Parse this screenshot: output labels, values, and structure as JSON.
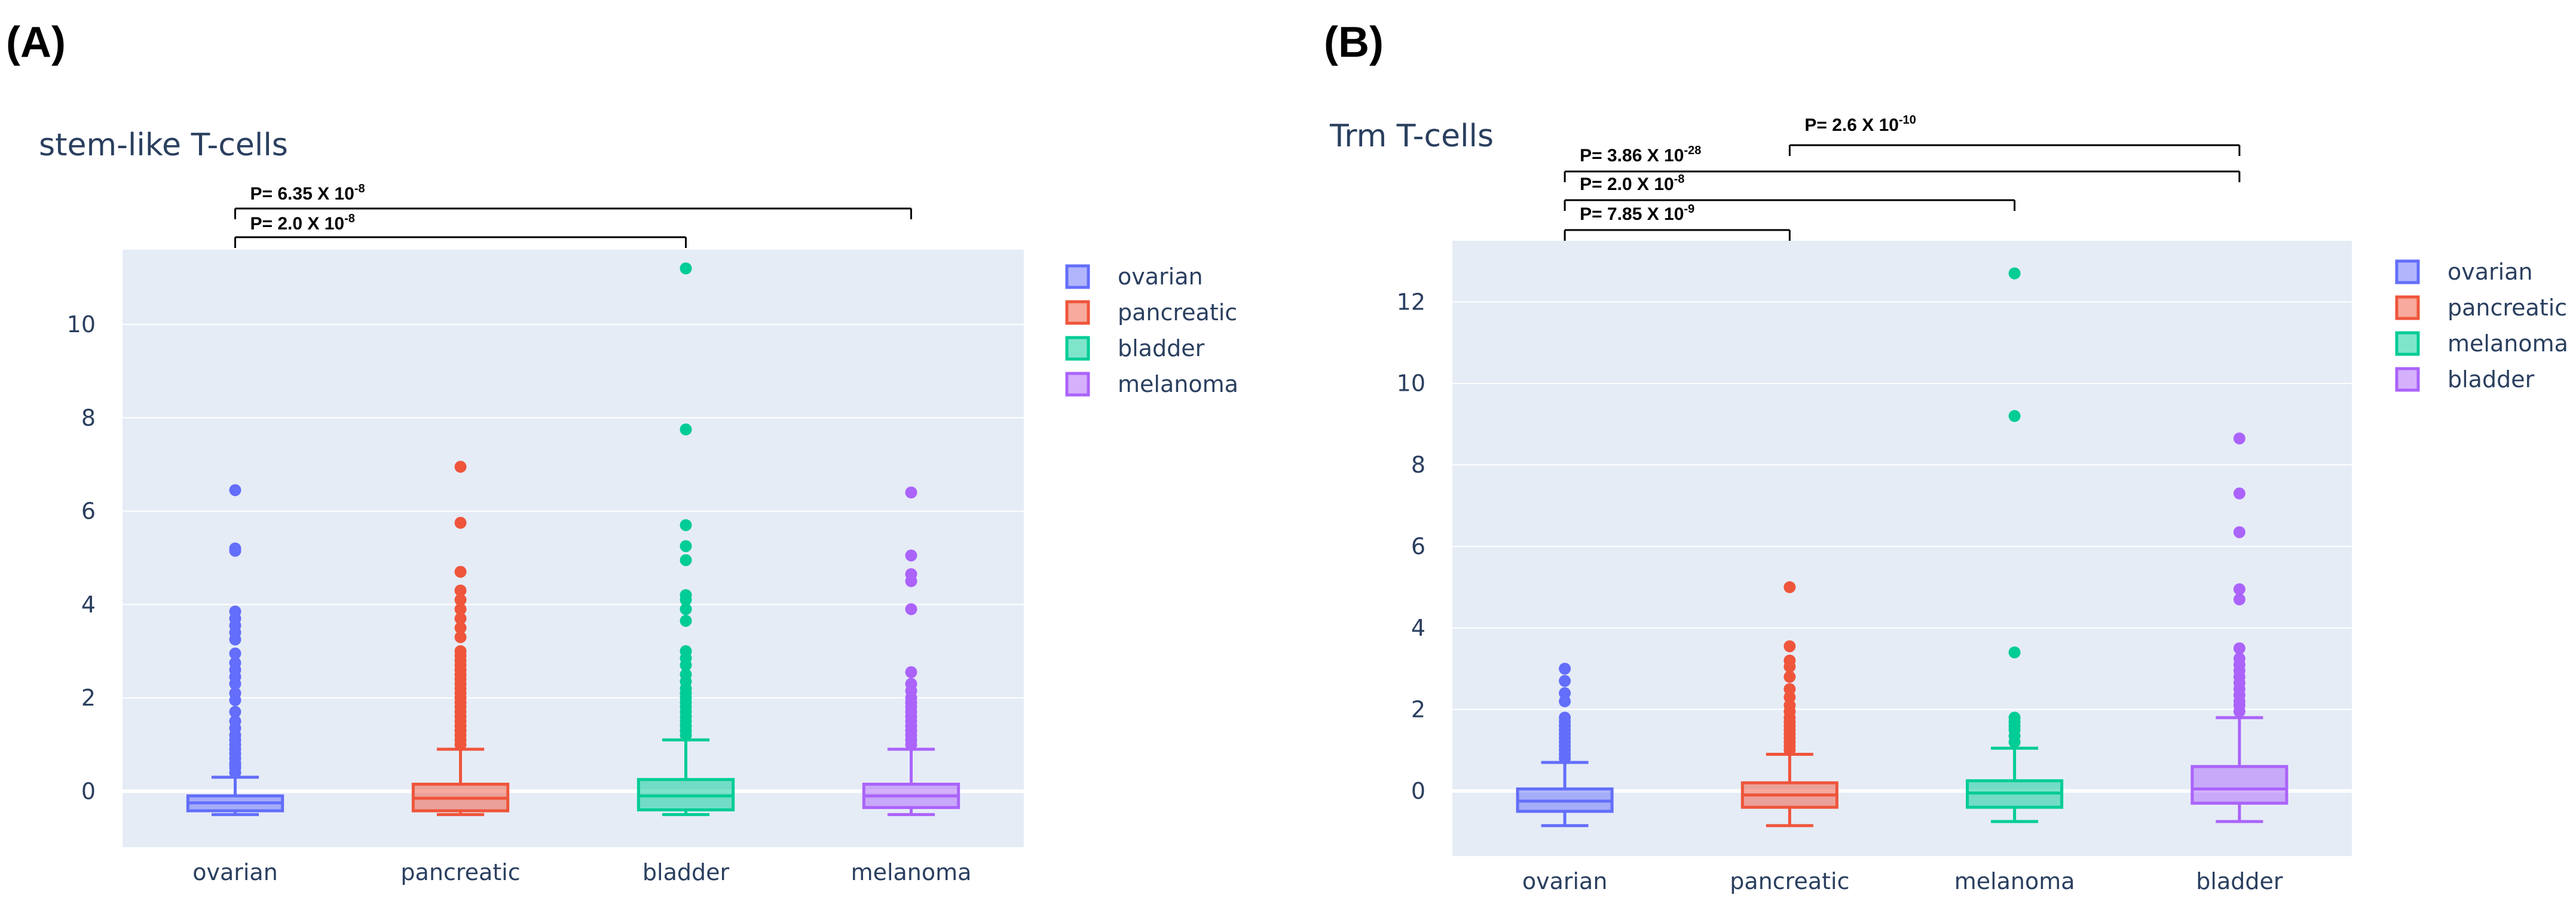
{
  "panel_labels": [
    "(A)",
    "(B)"
  ],
  "colors": {
    "ovarian": "#636efa",
    "pancreatic": "#ef553b",
    "bladder_A": "#00cc96",
    "melanoma_A": "#ab63fa",
    "melanoma_B": "#00cc96",
    "bladder_B": "#ab63fa",
    "plot_bg": "#e5ecf6",
    "text": "#2a3f5f"
  },
  "chart_data": [
    {
      "type": "box",
      "panel": "(A)",
      "title": "stem-like T-cells",
      "ylim": [
        -1.2,
        11.6
      ],
      "yticks": [
        0,
        2,
        4,
        6,
        8,
        10
      ],
      "categories": [
        "ovarian",
        "pancreatic",
        "bladder",
        "melanoma"
      ],
      "legend": [
        "ovarian",
        "pancreatic",
        "bladder",
        "melanoma"
      ],
      "legend_position": "right",
      "grid": true,
      "series": [
        {
          "name": "ovarian",
          "colorKey": "ovarian",
          "min": -0.5,
          "q1": -0.42,
          "median": -0.25,
          "q3": -0.1,
          "whisker_high": 0.3,
          "outliers": [
            0.4,
            0.5,
            0.55,
            0.6,
            0.7,
            0.8,
            0.9,
            1.0,
            1.1,
            1.2,
            1.35,
            1.5,
            1.7,
            1.95,
            2.1,
            2.3,
            2.45,
            2.6,
            2.75,
            2.95,
            3.25,
            3.4,
            3.55,
            3.7,
            3.85,
            5.15,
            5.2,
            6.45
          ]
        },
        {
          "name": "pancreatic",
          "colorKey": "pancreatic",
          "min": -0.5,
          "q1": -0.42,
          "median": -0.15,
          "q3": 0.15,
          "whisker_high": 0.9,
          "outliers": [
            1.0,
            1.1,
            1.2,
            1.3,
            1.4,
            1.5,
            1.6,
            1.7,
            1.8,
            1.9,
            2.0,
            2.1,
            2.2,
            2.3,
            2.4,
            2.5,
            2.6,
            2.7,
            2.8,
            2.9,
            3.0,
            3.3,
            3.5,
            3.7,
            3.9,
            4.1,
            4.3,
            4.7,
            5.75,
            6.95
          ]
        },
        {
          "name": "bladder",
          "colorKey": "bladder_A",
          "min": -0.5,
          "q1": -0.4,
          "median": -0.1,
          "q3": 0.25,
          "whisker_high": 1.1,
          "outliers": [
            1.2,
            1.3,
            1.4,
            1.5,
            1.6,
            1.7,
            1.8,
            1.9,
            2.0,
            2.1,
            2.2,
            2.35,
            2.5,
            2.7,
            2.85,
            3.0,
            3.65,
            3.9,
            4.1,
            4.2,
            4.95,
            5.25,
            5.7,
            7.75,
            11.2
          ]
        },
        {
          "name": "melanoma",
          "colorKey": "melanoma_A",
          "min": -0.5,
          "q1": -0.35,
          "median": -0.1,
          "q3": 0.15,
          "whisker_high": 0.9,
          "outliers": [
            1.0,
            1.1,
            1.2,
            1.3,
            1.4,
            1.5,
            1.6,
            1.7,
            1.8,
            1.9,
            2.0,
            2.15,
            2.3,
            2.55,
            3.9,
            4.5,
            4.65,
            5.05,
            6.4
          ]
        }
      ],
      "annotations": [
        {
          "text": "P= 6.35 X 10",
          "exp": "-8",
          "from": 0,
          "to": 3
        },
        {
          "text": "P= 2.0 X 10",
          "exp": "-8",
          "from": 0,
          "to": 2
        }
      ]
    },
    {
      "type": "box",
      "panel": "(B)",
      "title": "Trm T-cells",
      "ylim": [
        -1.6,
        13.5
      ],
      "yticks": [
        0,
        2,
        4,
        6,
        8,
        10,
        12
      ],
      "categories": [
        "ovarian",
        "pancreatic",
        "melanoma",
        "bladder"
      ],
      "legend": [
        "ovarian",
        "pancreatic",
        "melanoma",
        "bladder"
      ],
      "legend_position": "right",
      "grid": true,
      "series": [
        {
          "name": "ovarian",
          "colorKey": "ovarian",
          "min": -0.85,
          "q1": -0.5,
          "median": -0.25,
          "q3": 0.05,
          "whisker_high": 0.7,
          "outliers": [
            0.8,
            0.9,
            1.0,
            1.1,
            1.2,
            1.3,
            1.4,
            1.5,
            1.6,
            1.7,
            1.8,
            2.2,
            2.4,
            2.7,
            3.0
          ]
        },
        {
          "name": "pancreatic",
          "colorKey": "pancreatic",
          "min": -0.85,
          "q1": -0.4,
          "median": -0.1,
          "q3": 0.2,
          "whisker_high": 0.9,
          "outliers": [
            1.0,
            1.1,
            1.2,
            1.3,
            1.4,
            1.5,
            1.6,
            1.7,
            1.8,
            1.95,
            2.1,
            2.3,
            2.5,
            2.8,
            3.05,
            3.2,
            3.55,
            5.0
          ]
        },
        {
          "name": "melanoma",
          "colorKey": "melanoma_B",
          "min": -0.75,
          "q1": -0.4,
          "median": -0.05,
          "q3": 0.25,
          "whisker_high": 1.05,
          "outliers": [
            1.2,
            1.35,
            1.5,
            1.6,
            1.7,
            1.8,
            3.4,
            9.2,
            12.7
          ]
        },
        {
          "name": "bladder",
          "colorKey": "bladder_B",
          "min": -0.75,
          "q1": -0.3,
          "median": 0.05,
          "q3": 0.6,
          "whisker_high": 1.8,
          "outliers": [
            1.95,
            2.1,
            2.2,
            2.35,
            2.5,
            2.65,
            2.8,
            2.95,
            3.1,
            3.25,
            3.5,
            4.7,
            4.95,
            6.35,
            7.3,
            8.65
          ]
        }
      ],
      "annotations": [
        {
          "text": "P= 2.6 X 10",
          "exp": "-10",
          "from": 1,
          "to": 3
        },
        {
          "text": "P= 3.86 X 10",
          "exp": "-28",
          "from": 0,
          "to": 3
        },
        {
          "text": "P= 2.0 X 10",
          "exp": "-8",
          "from": 0,
          "to": 2
        },
        {
          "text": "P= 7.85 X 10",
          "exp": "-9",
          "from": 0,
          "to": 1
        }
      ]
    }
  ]
}
